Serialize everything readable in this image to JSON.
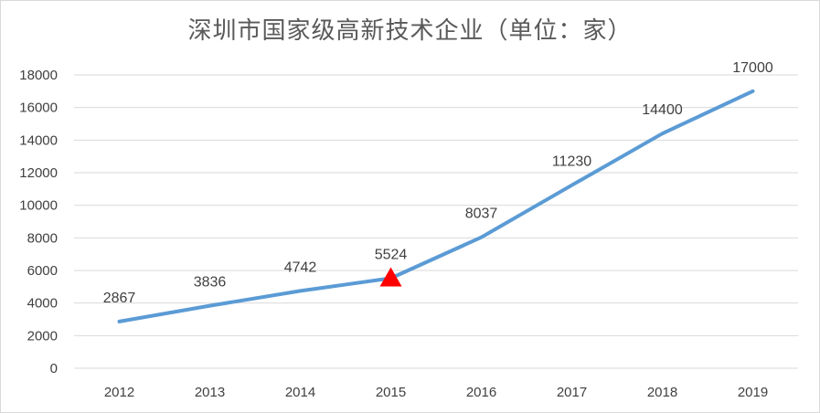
{
  "chart_data": {
    "type": "line",
    "title": "深圳市国家级高新技术企业（单位：家）",
    "xlabel": "",
    "ylabel": "",
    "categories": [
      "2012",
      "2013",
      "2014",
      "2015",
      "2016",
      "2017",
      "2018",
      "2019"
    ],
    "series": [
      {
        "values": [
          2867,
          3836,
          4742,
          5524,
          8037,
          11230,
          14400,
          17000
        ],
        "color": "#5b9bd5",
        "data_labels": [
          "2867",
          "3836",
          "4742",
          "5524",
          "8037",
          "11230",
          "14400",
          "17000"
        ]
      }
    ],
    "ylim": [
      0,
      18000
    ],
    "yticks": [
      "0",
      "2000",
      "4000",
      "6000",
      "8000",
      "10000",
      "12000",
      "14000",
      "16000",
      "18000"
    ],
    "grid": true,
    "legend": "none",
    "marker": {
      "category": "2015",
      "shape": "triangle",
      "color": "#ff0000"
    }
  }
}
